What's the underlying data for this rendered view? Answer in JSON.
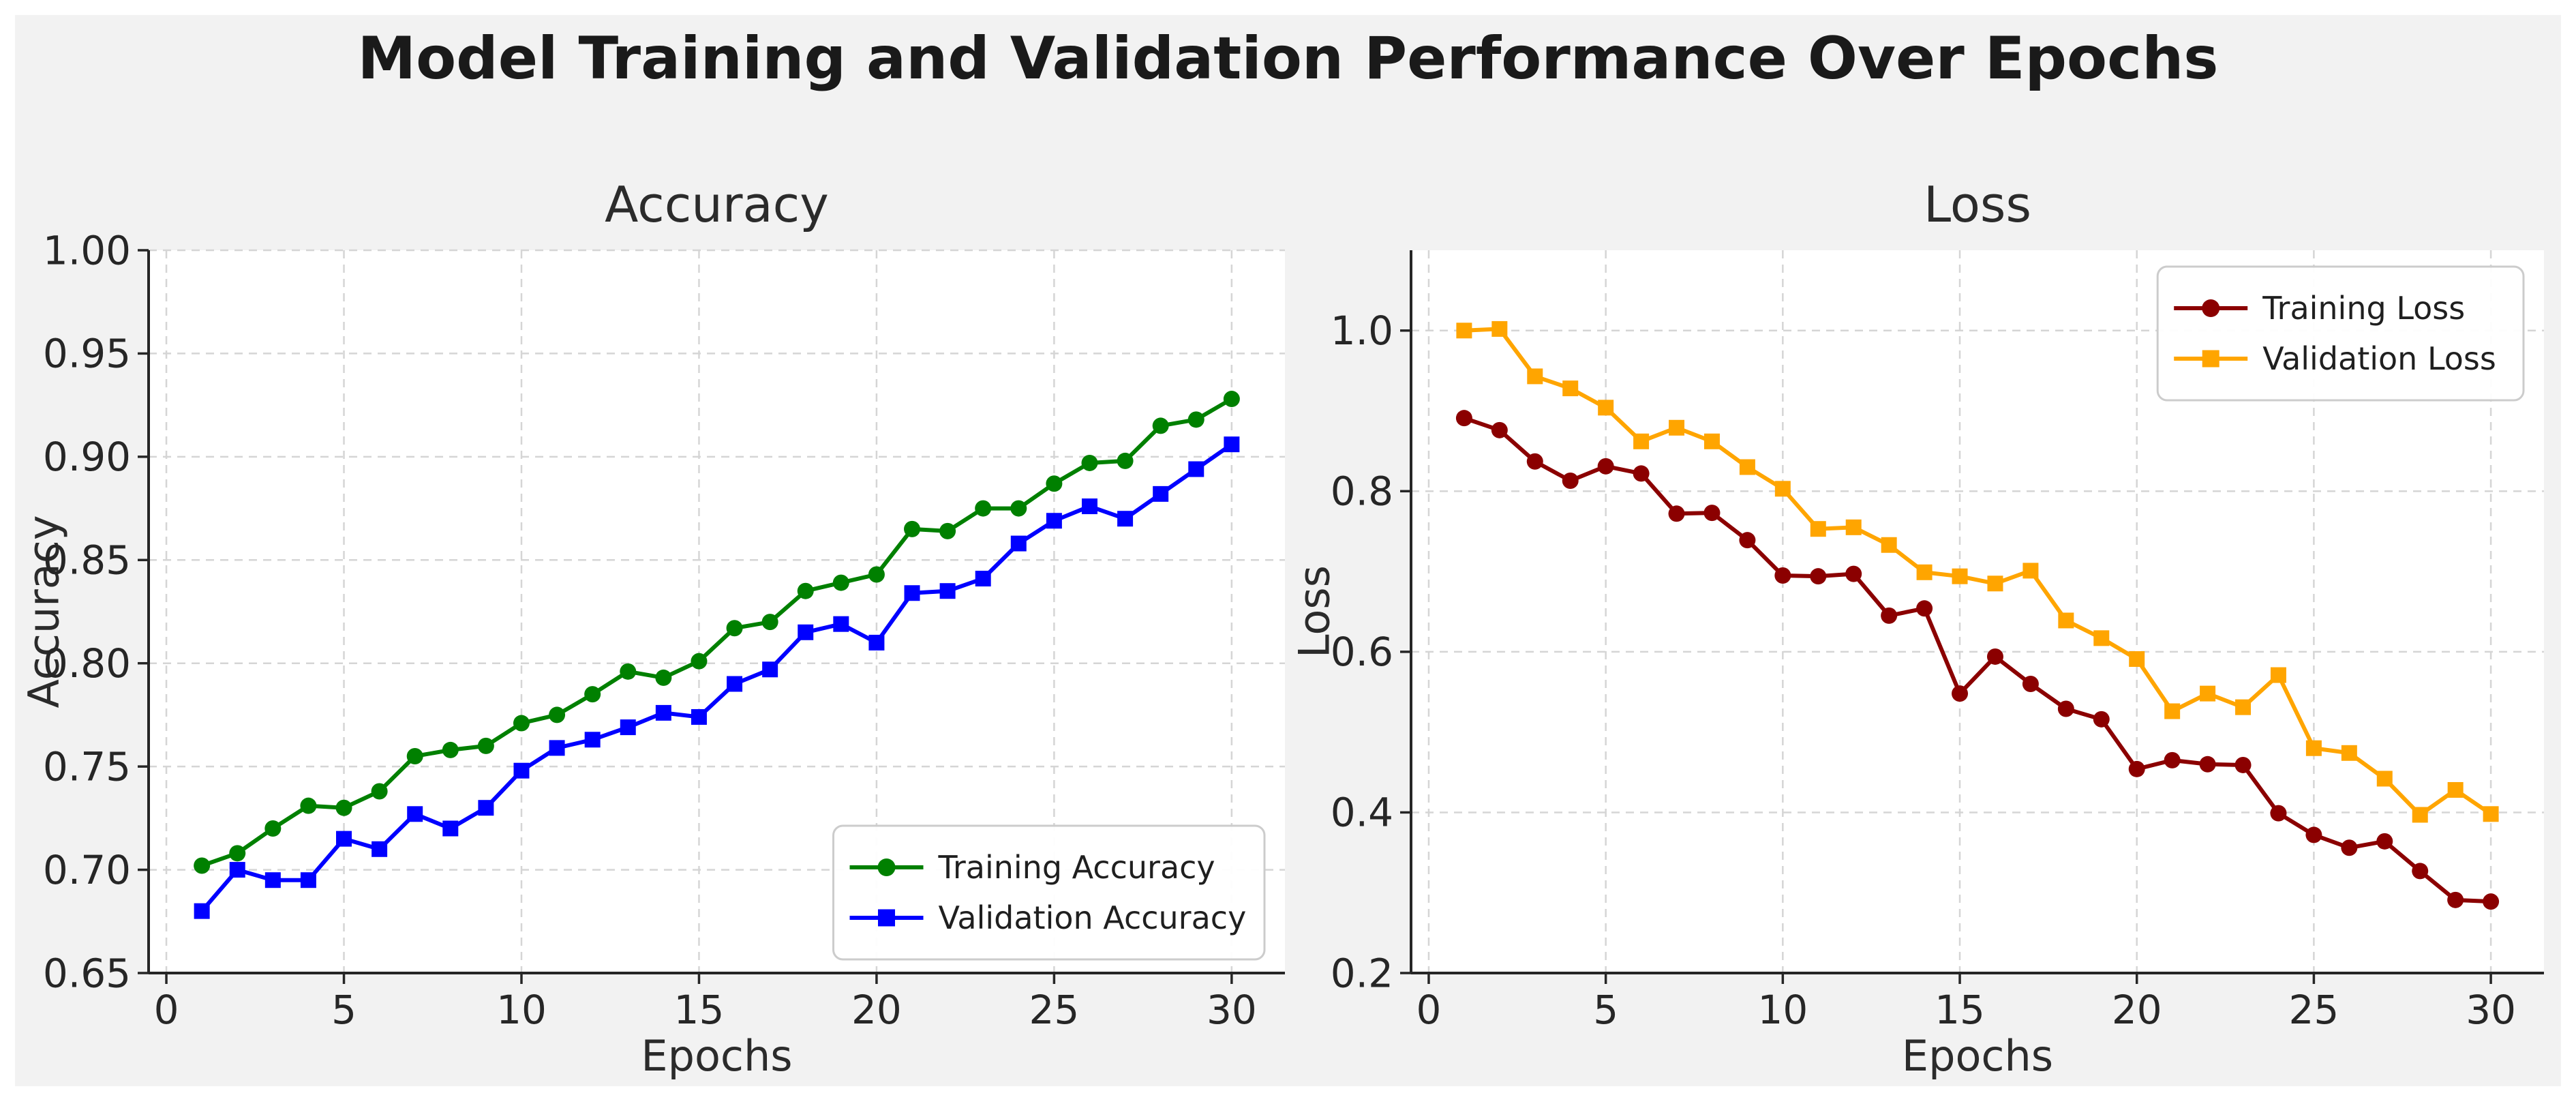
{
  "page": {
    "title": "Model Training and Validation Performance Over Epochs"
  },
  "colors": {
    "figure_bg": "#f2f2f2",
    "plot_bg": "#ffffff",
    "grid": "#d5d5d5",
    "spine": "#262626",
    "tick_text": "#262626",
    "legend_border": "#cccccc",
    "legend_bg": "#ffffff",
    "training_accuracy": "#008000",
    "validation_accuracy": "#0000ff",
    "training_loss": "#8b0000",
    "validation_loss": "#ffa500"
  },
  "chart_data": [
    {
      "type": "line",
      "title": "Accuracy",
      "xlabel": "Epochs",
      "ylabel": "Accuracy",
      "x": [
        1,
        2,
        3,
        4,
        5,
        6,
        7,
        8,
        9,
        10,
        11,
        12,
        13,
        14,
        15,
        16,
        17,
        18,
        19,
        20,
        21,
        22,
        23,
        24,
        25,
        26,
        27,
        28,
        29,
        30
      ],
      "xlim": [
        -0.5,
        31.5
      ],
      "ylim": [
        0.65,
        1.0
      ],
      "xticks": [
        0,
        5,
        10,
        15,
        20,
        25,
        30
      ],
      "yticks": [
        0.65,
        0.7,
        0.75,
        0.8,
        0.85,
        0.9,
        0.95,
        1.0
      ],
      "ytick_decimals": 2,
      "grid": true,
      "legend_position": "lower-right",
      "series": [
        {
          "name": "Training Accuracy",
          "color": "#008000",
          "marker": "circle",
          "values": [
            0.702,
            0.708,
            0.72,
            0.731,
            0.73,
            0.738,
            0.755,
            0.758,
            0.76,
            0.771,
            0.775,
            0.785,
            0.796,
            0.793,
            0.801,
            0.817,
            0.82,
            0.835,
            0.839,
            0.843,
            0.865,
            0.864,
            0.875,
            0.875,
            0.887,
            0.897,
            0.898,
            0.915,
            0.918,
            0.928
          ]
        },
        {
          "name": "Validation Accuracy",
          "color": "#0000ff",
          "marker": "square",
          "values": [
            0.68,
            0.7,
            0.695,
            0.695,
            0.715,
            0.71,
            0.727,
            0.72,
            0.73,
            0.748,
            0.759,
            0.763,
            0.769,
            0.776,
            0.774,
            0.79,
            0.797,
            0.815,
            0.819,
            0.81,
            0.834,
            0.835,
            0.841,
            0.858,
            0.869,
            0.876,
            0.87,
            0.882,
            0.894,
            0.906
          ]
        }
      ]
    },
    {
      "type": "line",
      "title": "Loss",
      "xlabel": "Epochs",
      "ylabel": "Loss",
      "x": [
        1,
        2,
        3,
        4,
        5,
        6,
        7,
        8,
        9,
        10,
        11,
        12,
        13,
        14,
        15,
        16,
        17,
        18,
        19,
        20,
        21,
        22,
        23,
        24,
        25,
        26,
        27,
        28,
        29,
        30
      ],
      "xlim": [
        -0.5,
        31.5
      ],
      "ylim": [
        0.2,
        1.1
      ],
      "xticks": [
        0,
        5,
        10,
        15,
        20,
        25,
        30
      ],
      "yticks": [
        0.2,
        0.4,
        0.6,
        0.8,
        1.0
      ],
      "ytick_decimals": 1,
      "grid": true,
      "legend_position": "upper-right",
      "series": [
        {
          "name": "Training Loss",
          "color": "#8b0000",
          "marker": "circle",
          "values": [
            0.891,
            0.876,
            0.837,
            0.813,
            0.831,
            0.822,
            0.772,
            0.773,
            0.739,
            0.695,
            0.694,
            0.697,
            0.645,
            0.654,
            0.548,
            0.594,
            0.56,
            0.529,
            0.516,
            0.454,
            0.465,
            0.46,
            0.459,
            0.399,
            0.372,
            0.356,
            0.364,
            0.327,
            0.291,
            0.289
          ]
        },
        {
          "name": "Validation Loss",
          "color": "#ffa500",
          "marker": "square",
          "values": [
            1.0,
            1.002,
            0.943,
            0.928,
            0.904,
            0.862,
            0.879,
            0.862,
            0.83,
            0.803,
            0.753,
            0.755,
            0.733,
            0.699,
            0.694,
            0.685,
            0.701,
            0.639,
            0.617,
            0.591,
            0.526,
            0.548,
            0.531,
            0.571,
            0.48,
            0.474,
            0.442,
            0.397,
            0.428,
            0.398
          ]
        }
      ]
    }
  ]
}
